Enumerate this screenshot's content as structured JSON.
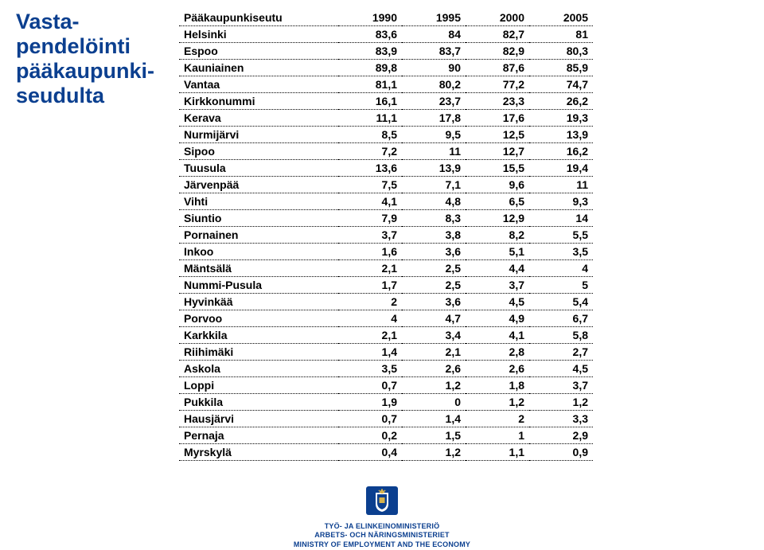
{
  "title_lines": [
    "Vasta-",
    "pendelöinti",
    "pääkaupunki-",
    "seudulta"
  ],
  "table": {
    "header": [
      "Pääkaupunkiseutu",
      "1990",
      "1995",
      "2000",
      "2005"
    ],
    "rows": [
      [
        "Helsinki",
        "83,6",
        "84",
        "82,7",
        "81"
      ],
      [
        "Espoo",
        "83,9",
        "83,7",
        "82,9",
        "80,3"
      ],
      [
        "Kauniainen",
        "89,8",
        "90",
        "87,6",
        "85,9"
      ],
      [
        "Vantaa",
        "81,1",
        "80,2",
        "77,2",
        "74,7"
      ],
      [
        "Kirkkonummi",
        "16,1",
        "23,7",
        "23,3",
        "26,2"
      ],
      [
        "Kerava",
        "11,1",
        "17,8",
        "17,6",
        "19,3"
      ],
      [
        "Nurmijärvi",
        "8,5",
        "9,5",
        "12,5",
        "13,9"
      ],
      [
        "Sipoo",
        "7,2",
        "11",
        "12,7",
        "16,2"
      ],
      [
        "Tuusula",
        "13,6",
        "13,9",
        "15,5",
        "19,4"
      ],
      [
        "Järvenpää",
        "7,5",
        "7,1",
        "9,6",
        "11"
      ],
      [
        "Vihti",
        "4,1",
        "4,8",
        "6,5",
        "9,3"
      ],
      [
        "Siuntio",
        "7,9",
        "8,3",
        "12,9",
        "14"
      ],
      [
        "Pornainen",
        "3,7",
        "3,8",
        "8,2",
        "5,5"
      ],
      [
        "Inkoo",
        "1,6",
        "3,6",
        "5,1",
        "3,5"
      ],
      [
        "Mäntsälä",
        "2,1",
        "2,5",
        "4,4",
        "4"
      ],
      [
        "Nummi-Pusula",
        "1,7",
        "2,5",
        "3,7",
        "5"
      ],
      [
        "Hyvinkää",
        "2",
        "3,6",
        "4,5",
        "5,4"
      ],
      [
        "Porvoo",
        "4",
        "4,7",
        "4,9",
        "6,7"
      ],
      [
        "Karkkila",
        "2,1",
        "3,4",
        "4,1",
        "5,8"
      ],
      [
        "Riihimäki",
        "1,4",
        "2,1",
        "2,8",
        "2,7"
      ],
      [
        "Askola",
        "3,5",
        "2,6",
        "2,6",
        "4,5"
      ],
      [
        "Loppi",
        "0,7",
        "1,2",
        "1,8",
        "3,7"
      ],
      [
        "Pukkila",
        "1,9",
        "0",
        "1,2",
        "1,2"
      ],
      [
        "Hausjärvi",
        "0,7",
        "1,4",
        "2",
        "3,3"
      ],
      [
        "Pernaja",
        "0,2",
        "1,5",
        "1",
        "2,9"
      ],
      [
        "Myrskylä",
        "0,4",
        "1,2",
        "1,1",
        "0,9"
      ]
    ]
  },
  "footer": {
    "line1": "TYÖ- JA ELINKEINOMINISTERIÖ",
    "line2": "ARBETS- OCH NÄRINGSMINISTERIET",
    "line3": "MINISTRY OF EMPLOYMENT AND THE ECONOMY"
  },
  "colors": {
    "title": "#0b3f8f",
    "logo_bg": "#0b3f8f",
    "logo_gold": "#d6b24c"
  }
}
